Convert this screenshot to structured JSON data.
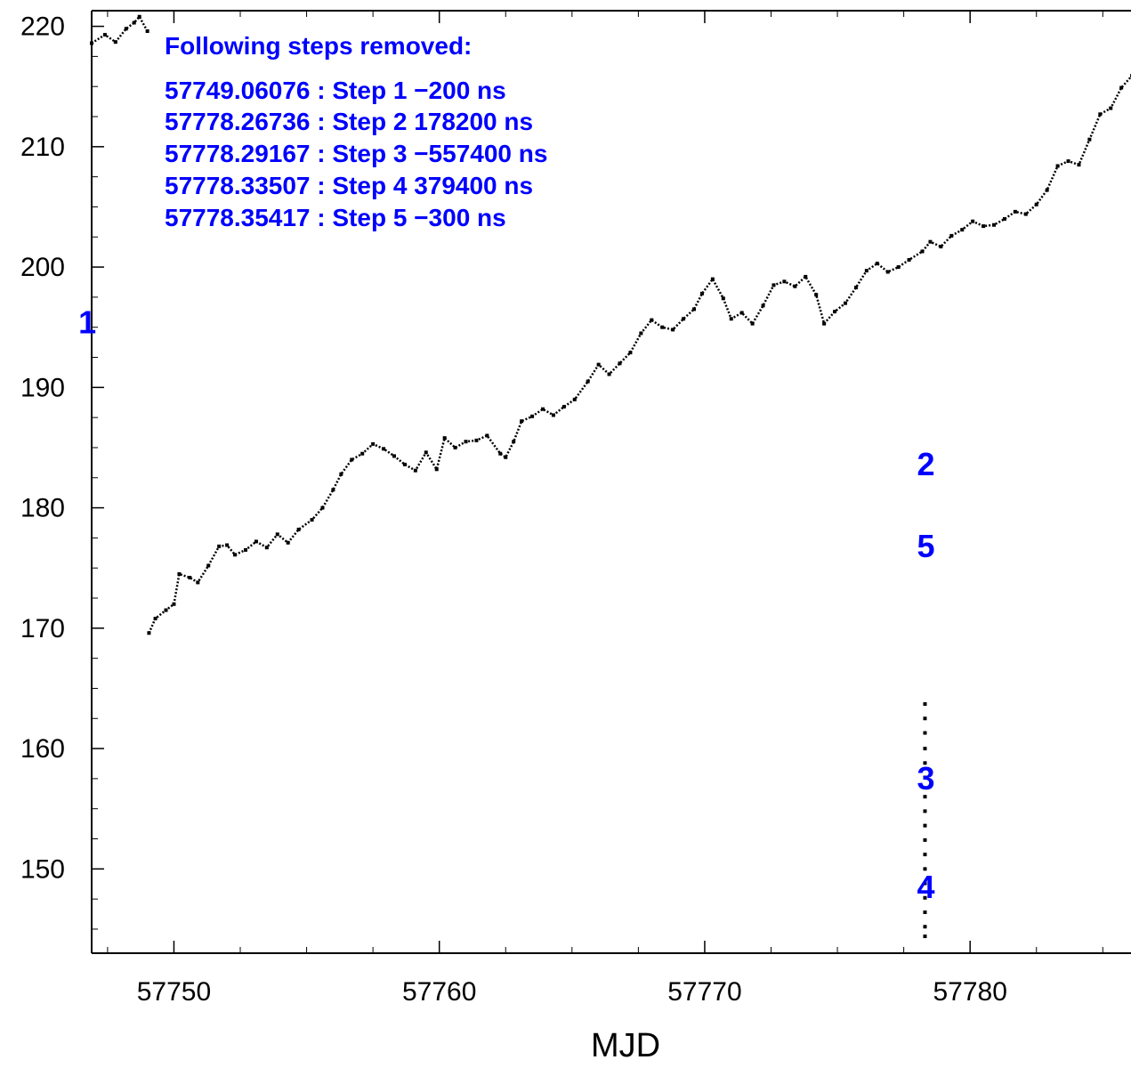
{
  "chart_data": {
    "type": "scatter",
    "title": "",
    "xlabel": "MJD",
    "ylabel": "",
    "xlim": [
      57746.9,
      57786.7
    ],
    "ylim": [
      143.0,
      221.3
    ],
    "grid": false,
    "x_ticks": [
      57750,
      57760,
      57770,
      57780
    ],
    "x_tick_labels": [
      "57750",
      "57760",
      "57770",
      "57780"
    ],
    "y_ticks": [
      150,
      160,
      170,
      180,
      190,
      200,
      210,
      220
    ],
    "y_tick_labels": [
      "150",
      "160",
      "170",
      "180",
      "190",
      "200",
      "210",
      "220"
    ],
    "marker_color": "#000000",
    "annotation_color": "#0000ff",
    "annotation": {
      "heading": "Following steps removed:",
      "lines": [
        "57749.06076 : Step 1 −200 ns",
        "57778.26736 : Step 2 178200 ns",
        "57778.29167 : Step 3 −557400 ns",
        "57778.33507 : Step 4 379400 ns",
        "57778.35417 : Step 5 −300 ns"
      ]
    },
    "step_markers": [
      {
        "label": "1",
        "x": 57746.4,
        "y": 194.5
      },
      {
        "label": "2",
        "x": 57778.0,
        "y": 182.7
      },
      {
        "label": "5",
        "x": 57778.0,
        "y": 175.9
      },
      {
        "label": "3",
        "x": 57778.0,
        "y": 156.6
      },
      {
        "label": "4",
        "x": 57778.0,
        "y": 147.6
      }
    ],
    "series": [
      {
        "points": [
          [
            57746.9,
            218.6
          ],
          [
            57747.4,
            219.3
          ],
          [
            57747.8,
            218.7
          ],
          [
            57748.2,
            219.8
          ],
          [
            57748.5,
            220.3
          ],
          [
            57748.7,
            220.8
          ],
          [
            57749.0,
            219.6
          ],
          [
            57749.06,
            169.6
          ],
          [
            57749.3,
            170.8
          ],
          [
            57749.7,
            171.5
          ],
          [
            57750.0,
            172.0
          ],
          [
            57750.2,
            174.5
          ],
          [
            57750.6,
            174.2
          ],
          [
            57750.9,
            173.8
          ],
          [
            57751.3,
            175.2
          ],
          [
            57751.7,
            176.8
          ],
          [
            57752.0,
            176.9
          ],
          [
            57752.3,
            176.1
          ],
          [
            57752.7,
            176.5
          ],
          [
            57753.1,
            177.2
          ],
          [
            57753.5,
            176.7
          ],
          [
            57753.9,
            177.8
          ],
          [
            57754.3,
            177.1
          ],
          [
            57754.7,
            178.2
          ],
          [
            57755.2,
            179.0
          ],
          [
            57755.6,
            180.0
          ],
          [
            57756.0,
            181.5
          ],
          [
            57756.3,
            182.8
          ],
          [
            57756.7,
            184.0
          ],
          [
            57757.1,
            184.5
          ],
          [
            57757.5,
            185.3
          ],
          [
            57757.9,
            184.9
          ],
          [
            57758.3,
            184.3
          ],
          [
            57758.7,
            183.6
          ],
          [
            57759.1,
            183.1
          ],
          [
            57759.5,
            184.6
          ],
          [
            57759.9,
            183.2
          ],
          [
            57760.2,
            185.8
          ],
          [
            57760.6,
            185.0
          ],
          [
            57761.0,
            185.5
          ],
          [
            57761.4,
            185.6
          ],
          [
            57761.8,
            186.0
          ],
          [
            57762.3,
            184.5
          ],
          [
            57762.5,
            184.2
          ],
          [
            57762.8,
            185.5
          ],
          [
            57763.1,
            187.2
          ],
          [
            57763.5,
            187.6
          ],
          [
            57763.9,
            188.2
          ],
          [
            57764.3,
            187.7
          ],
          [
            57764.7,
            188.4
          ],
          [
            57765.1,
            189.0
          ],
          [
            57765.6,
            190.5
          ],
          [
            57766.0,
            191.9
          ],
          [
            57766.4,
            191.1
          ],
          [
            57766.8,
            192.0
          ],
          [
            57767.2,
            192.9
          ],
          [
            57767.6,
            194.5
          ],
          [
            57768.0,
            195.6
          ],
          [
            57768.4,
            195.0
          ],
          [
            57768.8,
            194.8
          ],
          [
            57769.2,
            195.7
          ],
          [
            57769.6,
            196.5
          ],
          [
            57769.9,
            197.8
          ],
          [
            57770.3,
            199.0
          ],
          [
            57770.7,
            197.4
          ],
          [
            57771.0,
            195.7
          ],
          [
            57771.4,
            196.2
          ],
          [
            57771.8,
            195.3
          ],
          [
            57772.2,
            196.8
          ],
          [
            57772.6,
            198.5
          ],
          [
            57773.0,
            198.8
          ],
          [
            57773.4,
            198.4
          ],
          [
            57773.8,
            199.2
          ],
          [
            57774.2,
            197.7
          ],
          [
            57774.5,
            195.3
          ],
          [
            57774.9,
            196.3
          ],
          [
            57775.3,
            197.0
          ],
          [
            57775.7,
            198.3
          ],
          [
            57776.1,
            199.7
          ],
          [
            57776.5,
            200.3
          ],
          [
            57776.9,
            199.6
          ],
          [
            57777.3,
            200.0
          ],
          [
            57777.7,
            200.6
          ],
          [
            57778.2,
            201.3
          ],
          [
            57778.5,
            202.1
          ],
          [
            57778.9,
            201.7
          ],
          [
            57779.3,
            202.6
          ],
          [
            57779.7,
            203.1
          ],
          [
            57780.1,
            203.8
          ],
          [
            57780.5,
            203.4
          ],
          [
            57780.9,
            203.5
          ],
          [
            57781.3,
            204.0
          ],
          [
            57781.7,
            204.6
          ],
          [
            57782.1,
            204.4
          ],
          [
            57782.5,
            205.2
          ],
          [
            57782.9,
            206.4
          ],
          [
            57783.3,
            208.4
          ],
          [
            57783.7,
            208.8
          ],
          [
            57784.1,
            208.5
          ],
          [
            57784.5,
            210.6
          ],
          [
            57784.9,
            212.7
          ],
          [
            57785.3,
            213.2
          ],
          [
            57785.7,
            214.9
          ],
          [
            57786.1,
            215.9
          ],
          [
            57786.5,
            216.2
          ],
          [
            57786.7,
            216.6
          ]
        ]
      },
      {
        "points": [
          [
            57778.3,
            163.7
          ],
          [
            57778.3,
            162.5
          ],
          [
            57778.3,
            161.3
          ],
          [
            57778.3,
            160.0
          ],
          [
            57778.3,
            158.8
          ],
          [
            57778.3,
            157.6
          ],
          [
            57778.3,
            156.0
          ],
          [
            57778.3,
            154.8
          ],
          [
            57778.3,
            153.6
          ],
          [
            57778.3,
            152.4
          ],
          [
            57778.3,
            151.2
          ],
          [
            57778.3,
            150.0
          ],
          [
            57778.3,
            148.8
          ],
          [
            57778.3,
            147.6
          ],
          [
            57778.3,
            146.4
          ],
          [
            57778.3,
            145.2
          ],
          [
            57778.3,
            144.4
          ]
        ]
      }
    ]
  }
}
